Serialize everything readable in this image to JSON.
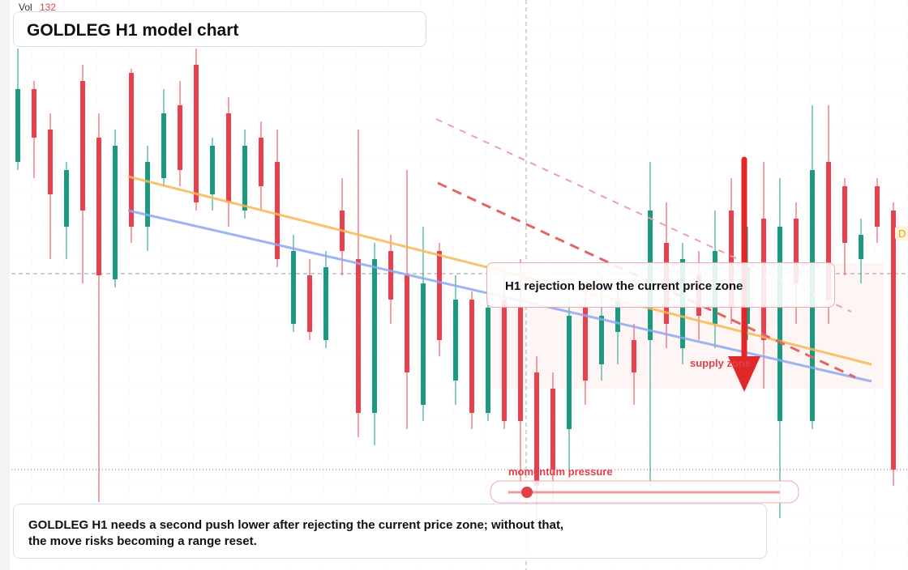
{
  "chart_data": {
    "type": "candlestick",
    "title": "GOLDLEG H1 model chart",
    "volume_label": "Vol",
    "volume_value": "132",
    "annotation": "H1 rejection below the current price zone",
    "zone_label": "supply zone",
    "indicator_label": "momentum pressure",
    "edge_label": "D",
    "note": "GOLDLEG H1 needs a second push lower after rejecting the current price zone; without that, the move risks becoming a range reset.",
    "ylim": [
      0,
      700
    ],
    "up_color": "#1a9a81",
    "down_color": "#e8404f",
    "candles": [
      [
        500,
        640,
        490,
        590
      ],
      [
        590,
        600,
        480,
        530
      ],
      [
        540,
        560,
        380,
        460
      ],
      [
        420,
        500,
        380,
        490
      ],
      [
        600,
        620,
        350,
        440
      ],
      [
        530,
        560,
        80,
        360
      ],
      [
        355,
        540,
        345,
        520
      ],
      [
        610,
        615,
        400,
        420
      ],
      [
        420,
        520,
        390,
        500
      ],
      [
        480,
        590,
        470,
        560
      ],
      [
        570,
        600,
        470,
        490
      ],
      [
        620,
        640,
        440,
        450
      ],
      [
        460,
        530,
        440,
        520
      ],
      [
        560,
        580,
        420,
        450
      ],
      [
        440,
        540,
        430,
        520
      ],
      [
        530,
        550,
        440,
        470
      ],
      [
        500,
        540,
        370,
        380
      ],
      [
        300,
        410,
        290,
        390
      ],
      [
        360,
        380,
        280,
        290
      ],
      [
        280,
        390,
        270,
        370
      ],
      [
        440,
        480,
        360,
        390
      ],
      [
        380,
        540,
        160,
        190
      ],
      [
        190,
        400,
        150,
        380
      ],
      [
        390,
        410,
        300,
        330
      ],
      [
        360,
        490,
        170,
        240
      ],
      [
        200,
        420,
        180,
        350
      ],
      [
        390,
        400,
        260,
        280
      ],
      [
        230,
        360,
        200,
        330
      ],
      [
        330,
        340,
        170,
        190
      ],
      [
        190,
        340,
        180,
        320
      ],
      [
        330,
        360,
        170,
        180
      ],
      [
        320,
        380,
        80,
        180
      ],
      [
        240,
        260,
        60,
        100
      ],
      [
        220,
        240,
        80,
        120
      ],
      [
        170,
        330,
        120,
        310
      ],
      [
        320,
        350,
        200,
        230
      ],
      [
        250,
        360,
        230,
        310
      ],
      [
        290,
        340,
        250,
        330
      ],
      [
        280,
        300,
        200,
        240
      ],
      [
        280,
        500,
        100,
        440
      ],
      [
        400,
        450,
        270,
        300
      ],
      [
        270,
        400,
        250,
        380
      ],
      [
        360,
        390,
        280,
        310
      ],
      [
        300,
        440,
        270,
        390
      ],
      [
        440,
        480,
        300,
        320
      ],
      [
        300,
        420,
        280,
        370
      ],
      [
        430,
        500,
        220,
        280
      ],
      [
        180,
        480,
        60,
        420
      ],
      [
        430,
        450,
        300,
        350
      ],
      [
        180,
        570,
        170,
        490
      ],
      [
        500,
        570,
        300,
        330
      ],
      [
        470,
        480,
        360,
        400
      ],
      [
        380,
        430,
        350,
        410
      ],
      [
        470,
        480,
        400,
        420
      ],
      [
        440,
        450,
        100,
        120
      ]
    ]
  }
}
